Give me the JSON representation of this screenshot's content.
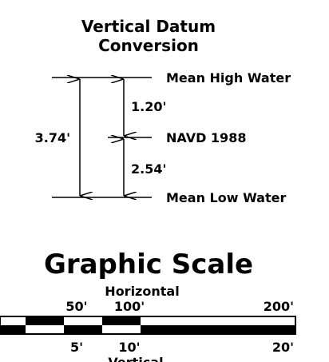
{
  "title": {
    "line1": "Vertical Datum",
    "line2": "Conversion"
  },
  "datums": {
    "top": "Mean High Water",
    "middle": "NAVD 1988",
    "bottom": "Mean Low Water"
  },
  "measurements": {
    "total": "3.74'",
    "upper": "1.20'",
    "lower": "2.54'"
  },
  "scale": {
    "title": "Graphic Scale",
    "horizontal_label": "Horizontal",
    "horizontal_ticks": [
      "50'",
      "100'",
      "200'"
    ],
    "vertical_ticks": [
      "5'",
      "10'",
      "20'"
    ],
    "vertical_label": "Vertical"
  }
}
